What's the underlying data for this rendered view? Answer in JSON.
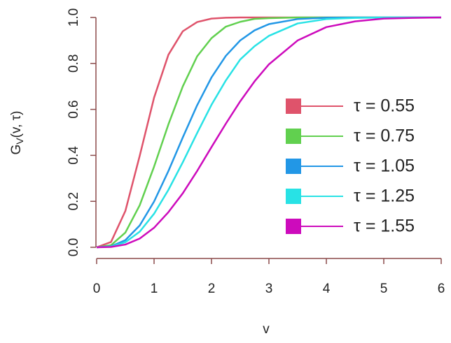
{
  "chart_data": {
    "type": "line",
    "x_label": "v",
    "y_label": {
      "base": "G",
      "subscript": "V",
      "rest": "(v, τ)"
    },
    "x": [
      0,
      0.25,
      0.5,
      0.75,
      1,
      1.25,
      1.5,
      1.75,
      2,
      2.25,
      2.5,
      2.75,
      3,
      3.5,
      4,
      4.5,
      5,
      5.5,
      6
    ],
    "series": [
      {
        "name": "τ = 0.55",
        "color": "#df536b",
        "values": [
          0,
          0.023,
          0.158,
          0.398,
          0.651,
          0.838,
          0.94,
          0.98,
          0.995,
          0.999,
          1,
          1,
          1,
          1,
          1,
          1,
          1,
          1,
          1
        ]
      },
      {
        "name": "τ = 0.75",
        "color": "#61d04f",
        "values": [
          0,
          0.009,
          0.064,
          0.183,
          0.351,
          0.535,
          0.7,
          0.831,
          0.91,
          0.96,
          0.981,
          0.994,
          0.997,
          1,
          1,
          1,
          1,
          1,
          1
        ]
      },
      {
        "name": "τ = 1.05",
        "color": "#2297e6",
        "values": [
          0,
          0.004,
          0.031,
          0.095,
          0.199,
          0.332,
          0.478,
          0.618,
          0.739,
          0.833,
          0.9,
          0.944,
          0.971,
          0.993,
          0.999,
          1,
          1,
          1,
          1
        ]
      },
      {
        "name": "τ = 1.25",
        "color": "#28e2e5",
        "values": [
          0,
          0.003,
          0.022,
          0.068,
          0.146,
          0.25,
          0.37,
          0.497,
          0.62,
          0.726,
          0.817,
          0.875,
          0.92,
          0.974,
          0.993,
          0.998,
          1,
          1,
          1
        ]
      },
      {
        "name": "τ = 1.55",
        "color": "#cd0bbc",
        "values": [
          0,
          0.0015,
          0.012,
          0.038,
          0.085,
          0.153,
          0.235,
          0.332,
          0.436,
          0.538,
          0.635,
          0.722,
          0.796,
          0.9,
          0.958,
          0.983,
          0.995,
          0.998,
          1
        ]
      }
    ],
    "xlim": [
      0,
      6
    ],
    "ylim": [
      0,
      1
    ],
    "xticks": [
      0,
      1,
      2,
      3,
      4,
      5,
      6
    ],
    "yticks": [
      {
        "value": 0,
        "label": "0.0"
      },
      {
        "value": 0.2,
        "label": "0.2"
      },
      {
        "value": 0.4,
        "label": "0.4"
      },
      {
        "value": 0.6,
        "label": "0.6"
      },
      {
        "value": 0.8,
        "label": "0.8"
      },
      {
        "value": 1,
        "label": "1.0"
      }
    ],
    "axis_color": "#8b4a4a",
    "legend": "right"
  }
}
